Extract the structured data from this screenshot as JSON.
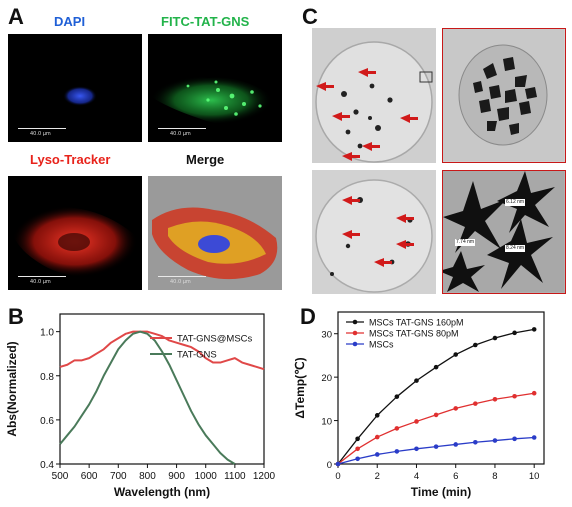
{
  "panels": {
    "A": {
      "letter": "A",
      "labels": {
        "dapi": "DAPI",
        "fitc": "FITC-TAT-GNS",
        "lyso": "Lyso-Tracker",
        "merge": "Merge"
      },
      "scale_text": "40.0 μm",
      "colors": {
        "dapi": "#1f5fd6",
        "fitc": "#22b34a",
        "lyso": "#e8231b",
        "merge": "#111111"
      }
    },
    "B": {
      "letter": "B"
    },
    "C": {
      "letter": "C",
      "measurements": [
        "6.12 nm",
        "7.74 nm",
        "8.24 nm"
      ]
    },
    "D": {
      "letter": "D"
    }
  },
  "chart_data": [
    {
      "type": "line",
      "panel": "B",
      "xlabel": "Wavelength (nm)",
      "ylabel": "Abs(Normalized)",
      "xlim": [
        500,
        1200
      ],
      "ylim": [
        0.4,
        1.08
      ],
      "xticks": [
        500,
        600,
        700,
        800,
        900,
        1000,
        1100,
        1200
      ],
      "yticks": [
        0.4,
        0.6,
        0.8,
        1.0
      ],
      "legend_position": "top-right",
      "series": [
        {
          "name": "TAT-GNS@MSCs",
          "color": "#e04848",
          "x": [
            500,
            525,
            550,
            575,
            600,
            625,
            650,
            675,
            700,
            725,
            750,
            775,
            800,
            825,
            850,
            875,
            900,
            925,
            950,
            975,
            1000,
            1025,
            1050,
            1075,
            1100,
            1125,
            1150,
            1175,
            1200
          ],
          "y": [
            0.84,
            0.85,
            0.87,
            0.87,
            0.88,
            0.9,
            0.92,
            0.95,
            0.97,
            0.99,
            1.0,
            1.0,
            1.0,
            0.99,
            0.98,
            0.96,
            0.95,
            0.94,
            0.93,
            0.91,
            0.88,
            0.86,
            0.86,
            0.87,
            0.88,
            0.86,
            0.85,
            0.84,
            0.83
          ]
        },
        {
          "name": "TAT-GNS",
          "color": "#4a7a5a",
          "x": [
            500,
            525,
            550,
            575,
            600,
            625,
            650,
            675,
            700,
            725,
            750,
            775,
            800,
            825,
            850,
            875,
            900,
            925,
            950,
            975,
            1000,
            1025,
            1050,
            1075,
            1100
          ],
          "y": [
            0.49,
            0.53,
            0.57,
            0.62,
            0.67,
            0.73,
            0.8,
            0.86,
            0.92,
            0.96,
            0.99,
            1.0,
            0.99,
            0.96,
            0.91,
            0.85,
            0.78,
            0.71,
            0.64,
            0.58,
            0.53,
            0.49,
            0.45,
            0.42,
            0.4
          ]
        }
      ]
    },
    {
      "type": "line",
      "panel": "D",
      "xlabel": "Time (min)",
      "ylabel": "ΔTemp(℃)",
      "xlim": [
        0,
        10.5
      ],
      "ylim": [
        0,
        35
      ],
      "xticks": [
        0,
        2,
        4,
        6,
        8,
        10
      ],
      "yticks": [
        0,
        10,
        20,
        30
      ],
      "legend_position": "top-left",
      "series": [
        {
          "name": "MSCs TAT-GNS 160pM",
          "color": "#111111",
          "x": [
            0,
            1,
            2,
            3,
            4,
            5,
            6,
            7,
            8,
            9,
            10
          ],
          "y": [
            0,
            5.8,
            11.2,
            15.5,
            19.2,
            22.3,
            25.2,
            27.4,
            29.0,
            30.2,
            31.0
          ]
        },
        {
          "name": "MSCs TAT-GNS 80pM",
          "color": "#e03030",
          "x": [
            0,
            1,
            2,
            3,
            4,
            5,
            6,
            7,
            8,
            9,
            10
          ],
          "y": [
            0,
            3.5,
            6.2,
            8.2,
            9.8,
            11.3,
            12.8,
            13.9,
            14.9,
            15.6,
            16.3
          ]
        },
        {
          "name": "MSCs",
          "color": "#2a3cc8",
          "x": [
            0,
            1,
            2,
            3,
            4,
            5,
            6,
            7,
            8,
            9,
            10
          ],
          "y": [
            0,
            1.2,
            2.2,
            2.9,
            3.5,
            4.0,
            4.5,
            5.0,
            5.4,
            5.8,
            6.1
          ]
        }
      ]
    }
  ]
}
